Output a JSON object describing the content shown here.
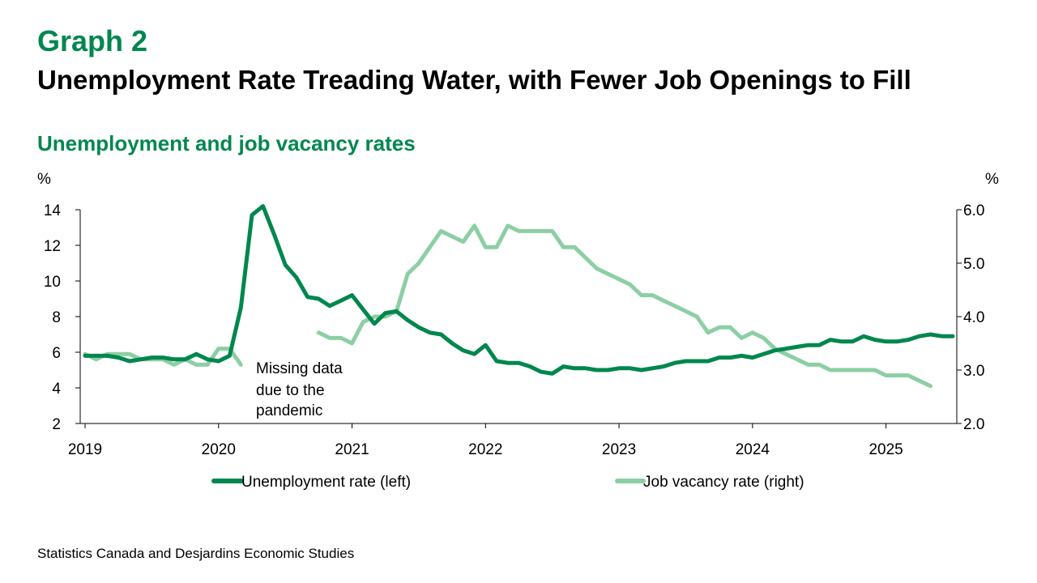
{
  "header": {
    "graph_number": "Graph 2",
    "title": "Unemployment Rate Treading Water, with Fewer Job Openings to Fill",
    "subtitle": "Unemployment and job vacancy rates"
  },
  "source": "Statistics Canada and Desjardins Economic Studies",
  "colors": {
    "unemployment": "#00874E",
    "vacancy": "#8CCFA4",
    "axis": "#000000",
    "title_green": "#00874E"
  },
  "chart_data": {
    "type": "line",
    "left_axis": {
      "unit_label": "%",
      "ylim": [
        2,
        14
      ],
      "ticks": [
        "2",
        "4",
        "6",
        "8",
        "10",
        "12",
        "14"
      ]
    },
    "right_axis": {
      "unit_label": "%",
      "ylim": [
        2.0,
        6.0
      ],
      "ticks": [
        "2.0",
        "3.0",
        "4.0",
        "5.0",
        "6.0"
      ]
    },
    "x_axis": {
      "ticks": [
        "2019",
        "2020",
        "2021",
        "2022",
        "2023",
        "2024",
        "2025"
      ],
      "xlim": [
        2019.0,
        2025.5
      ]
    },
    "grid": false,
    "legend_position": "bottom",
    "annotation": [
      "Missing data",
      "due to the",
      "pandemic"
    ],
    "series": [
      {
        "name": "Unemployment rate (left)",
        "axis": "left",
        "x": [
          2019.0,
          2019.083,
          2019.167,
          2019.25,
          2019.333,
          2019.417,
          2019.5,
          2019.583,
          2019.667,
          2019.75,
          2019.833,
          2019.917,
          2020.0,
          2020.083,
          2020.167,
          2020.25,
          2020.333,
          2020.417,
          2020.5,
          2020.583,
          2020.667,
          2020.75,
          2020.833,
          2020.917,
          2021.0,
          2021.083,
          2021.167,
          2021.25,
          2021.333,
          2021.417,
          2021.5,
          2021.583,
          2021.667,
          2021.75,
          2021.833,
          2021.917,
          2022.0,
          2022.083,
          2022.167,
          2022.25,
          2022.333,
          2022.417,
          2022.5,
          2022.583,
          2022.667,
          2022.75,
          2022.833,
          2022.917,
          2023.0,
          2023.083,
          2023.167,
          2023.25,
          2023.333,
          2023.417,
          2023.5,
          2023.583,
          2023.667,
          2023.75,
          2023.833,
          2023.917,
          2024.0,
          2024.083,
          2024.167,
          2024.25,
          2024.333,
          2024.417,
          2024.5,
          2024.583,
          2024.667,
          2024.75,
          2024.833,
          2024.917,
          2025.0,
          2025.083,
          2025.167,
          2025.25,
          2025.333,
          2025.417,
          2025.5
        ],
        "values": [
          5.8,
          5.8,
          5.8,
          5.7,
          5.5,
          5.6,
          5.7,
          5.7,
          5.6,
          5.6,
          5.9,
          5.6,
          5.5,
          5.8,
          8.5,
          13.7,
          14.2,
          12.6,
          10.9,
          10.2,
          9.1,
          9.0,
          8.6,
          8.9,
          9.2,
          8.4,
          7.6,
          8.2,
          8.3,
          7.8,
          7.4,
          7.1,
          7.0,
          6.5,
          6.1,
          5.9,
          6.4,
          5.5,
          5.4,
          5.4,
          5.2,
          4.9,
          4.8,
          5.2,
          5.1,
          5.1,
          5.0,
          5.0,
          5.1,
          5.1,
          5.0,
          5.1,
          5.2,
          5.4,
          5.5,
          5.5,
          5.5,
          5.7,
          5.7,
          5.8,
          5.7,
          5.9,
          6.1,
          6.2,
          6.3,
          6.4,
          6.4,
          6.7,
          6.6,
          6.6,
          6.9,
          6.7,
          6.6,
          6.6,
          6.7,
          6.9,
          7.0,
          6.9,
          6.9
        ]
      },
      {
        "name": "Job vacancy rate (right)",
        "axis": "right",
        "segments": [
          {
            "x": [
              2019.0,
              2019.083,
              2019.167,
              2019.25,
              2019.333,
              2019.417,
              2019.5,
              2019.583,
              2019.667,
              2019.75,
              2019.833,
              2019.917,
              2020.0,
              2020.083,
              2020.167
            ],
            "values": [
              3.3,
              3.2,
              3.3,
              3.3,
              3.3,
              3.2,
              3.2,
              3.2,
              3.1,
              3.2,
              3.1,
              3.1,
              3.4,
              3.4,
              3.1
            ]
          },
          {
            "x": [
              2020.75,
              2020.833,
              2020.917,
              2021.0,
              2021.083,
              2021.167,
              2021.25,
              2021.333,
              2021.417,
              2021.5,
              2021.583,
              2021.667,
              2021.75,
              2021.833,
              2021.917,
              2022.0,
              2022.083,
              2022.167,
              2022.25,
              2022.333,
              2022.417,
              2022.5,
              2022.583,
              2022.667,
              2022.75,
              2022.833,
              2022.917,
              2023.0,
              2023.083,
              2023.167,
              2023.25,
              2023.333,
              2023.417,
              2023.5,
              2023.583,
              2023.667,
              2023.75,
              2023.833,
              2023.917,
              2024.0,
              2024.083,
              2024.167,
              2024.25,
              2024.333,
              2024.417,
              2024.5,
              2024.583,
              2024.667,
              2024.75,
              2024.833,
              2024.917,
              2025.0,
              2025.083,
              2025.167,
              2025.25,
              2025.333
            ],
            "values": [
              3.7,
              3.6,
              3.6,
              3.5,
              3.9,
              4.0,
              4.0,
              4.1,
              4.8,
              5.0,
              5.3,
              5.6,
              5.5,
              5.4,
              5.7,
              5.3,
              5.3,
              5.7,
              5.6,
              5.6,
              5.6,
              5.6,
              5.3,
              5.3,
              5.1,
              4.9,
              4.8,
              4.7,
              4.6,
              4.4,
              4.4,
              4.3,
              4.2,
              4.1,
              4.0,
              3.7,
              3.8,
              3.8,
              3.6,
              3.7,
              3.6,
              3.4,
              3.3,
              3.2,
              3.1,
              3.1,
              3.0,
              3.0,
              3.0,
              3.0,
              3.0,
              2.9,
              2.9,
              2.9,
              2.8,
              2.7
            ]
          }
        ]
      }
    ]
  }
}
